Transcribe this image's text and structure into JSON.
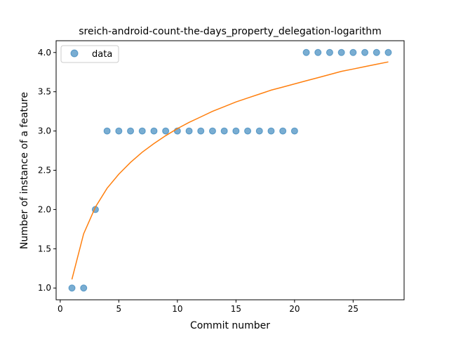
{
  "chart_data": {
    "type": "scatter",
    "title": "sreich-android-count-the-days_property_delegation-logarithm",
    "xlabel": "Commit number",
    "ylabel": "Number of instance of a feature",
    "xlim": [
      -0.35,
      29.35
    ],
    "ylim": [
      0.85,
      4.15
    ],
    "xticks": [
      0,
      5,
      10,
      15,
      20,
      25
    ],
    "yticks": [
      1.0,
      1.5,
      2.0,
      2.5,
      3.0,
      3.5,
      4.0
    ],
    "xtick_labels": [
      "0",
      "5",
      "10",
      "15",
      "20",
      "25"
    ],
    "ytick_labels": [
      "1.0",
      "1.5",
      "2.0",
      "2.5",
      "3.0",
      "3.5",
      "4.0"
    ],
    "grid": false,
    "legend": {
      "placement": "upper-left",
      "entries": [
        "data"
      ]
    },
    "series": [
      {
        "name": "data",
        "kind": "scatter",
        "color": "#1f77b4",
        "x": [
          1,
          2,
          3,
          4,
          5,
          6,
          7,
          8,
          9,
          10,
          11,
          12,
          13,
          14,
          15,
          16,
          17,
          18,
          19,
          20,
          21,
          22,
          23,
          24,
          25,
          26,
          27,
          28
        ],
        "y": [
          1,
          1,
          2,
          3,
          3,
          3,
          3,
          3,
          3,
          3,
          3,
          3,
          3,
          3,
          3,
          3,
          3,
          3,
          3,
          3,
          4,
          4,
          4,
          4,
          4,
          4,
          4,
          4
        ]
      },
      {
        "kind": "line",
        "color": "#ff7f0e",
        "x": [
          1,
          2,
          3,
          4,
          5,
          6,
          7,
          8,
          9,
          10,
          11,
          12,
          13,
          14,
          15,
          16,
          17,
          18,
          19,
          20,
          21,
          22,
          23,
          24,
          25,
          26,
          27,
          28
        ],
        "y": [
          1.11,
          1.69,
          2.03,
          2.27,
          2.45,
          2.6,
          2.73,
          2.84,
          2.94,
          3.03,
          3.11,
          3.18,
          3.25,
          3.31,
          3.37,
          3.42,
          3.47,
          3.52,
          3.56,
          3.6,
          3.64,
          3.68,
          3.72,
          3.76,
          3.79,
          3.82,
          3.85,
          3.88
        ]
      }
    ]
  }
}
